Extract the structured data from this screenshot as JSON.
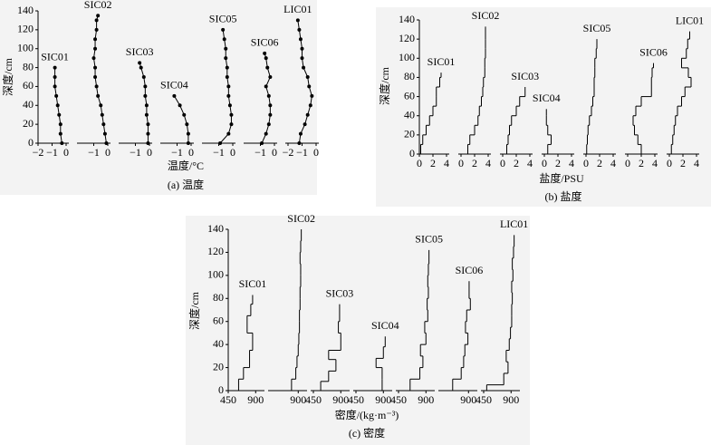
{
  "chart_data": [
    {
      "type": "line",
      "title": "(a) 温度",
      "xlabel": "温度/°C",
      "ylabel": "深度/cm",
      "ylim": [
        0,
        140
      ],
      "yticks": [
        0,
        20,
        40,
        60,
        80,
        100,
        120,
        140
      ],
      "xlim": [
        -2,
        0
      ],
      "series": [
        {
          "name": "SIC01",
          "xticks": [
            {
              "value": -2,
              "label": "−2"
            },
            {
              "value": -1,
              "label": "−1"
            },
            0
          ],
          "depth": [
            0,
            10,
            20,
            30,
            40,
            50,
            60,
            70,
            80
          ],
          "values": [
            -0.3,
            -0.4,
            -0.4,
            -0.5,
            -0.6,
            -0.7,
            -0.8,
            -0.8,
            -0.8
          ]
        },
        {
          "name": "SIC02",
          "xticks": [
            {
              "value": -1,
              "label": "−1"
            },
            0
          ],
          "depth": [
            0,
            10,
            20,
            30,
            40,
            50,
            60,
            70,
            80,
            90,
            100,
            110,
            120,
            130,
            135
          ],
          "values": [
            -0.1,
            -0.2,
            -0.3,
            -0.4,
            -0.5,
            -0.7,
            -0.8,
            -0.9,
            -0.9,
            -1.0,
            -0.9,
            -0.9,
            -0.8,
            -0.8,
            -0.7
          ]
        },
        {
          "name": "SIC03",
          "xticks": [
            {
              "value": -1,
              "label": "−1"
            },
            0
          ],
          "depth": [
            0,
            10,
            20,
            30,
            40,
            50,
            60,
            70,
            80,
            85
          ],
          "values": [
            -0.1,
            -0.1,
            -0.1,
            -0.2,
            -0.2,
            -0.3,
            -0.3,
            -0.4,
            -0.6,
            -0.7
          ]
        },
        {
          "name": "SIC04",
          "xticks": [
            {
              "value": -1,
              "label": "−1"
            },
            0
          ],
          "depth": [
            0,
            10,
            20,
            30,
            40,
            50
          ],
          "values": [
            -0.2,
            -0.2,
            -0.3,
            -0.5,
            -0.8,
            -1.2
          ]
        },
        {
          "name": "SIC05",
          "xticks": [
            {
              "value": -1,
              "label": "−1"
            },
            0
          ],
          "depth": [
            0,
            10,
            20,
            30,
            40,
            50,
            60,
            70,
            80,
            90,
            100,
            110,
            120
          ],
          "values": [
            -0.9,
            -0.3,
            -0.1,
            -0.1,
            -0.2,
            -0.3,
            -0.3,
            -0.4,
            -0.4,
            -0.5,
            -0.5,
            -0.6,
            -0.7
          ]
        },
        {
          "name": "SIC06",
          "xticks": [
            {
              "value": -1,
              "label": "−1"
            },
            0
          ],
          "depth": [
            0,
            10,
            20,
            30,
            40,
            50,
            60,
            70,
            80,
            90,
            95
          ],
          "values": [
            -0.9,
            -0.6,
            -0.4,
            -0.3,
            -0.3,
            -0.4,
            -0.6,
            -0.3,
            -0.5,
            -0.6,
            -0.7
          ]
        },
        {
          "name": "LIC01",
          "xticks": [
            {
              "value": -2,
              "label": "−2"
            },
            {
              "value": -1,
              "label": "−1"
            },
            0
          ],
          "depth": [
            0,
            10,
            20,
            30,
            40,
            50,
            60,
            70,
            80,
            90,
            100,
            110,
            120,
            130
          ],
          "values": [
            -1.2,
            -1.1,
            -0.8,
            -0.6,
            -0.4,
            -0.3,
            -0.5,
            -0.6,
            -0.9,
            -1.0,
            -1.0,
            -1.1,
            -1.2,
            -1.3
          ]
        }
      ]
    },
    {
      "type": "step",
      "title": "(b) 盐度",
      "xlabel": "盐度/PSU",
      "ylabel": "深度/cm",
      "ylim": [
        0,
        140
      ],
      "yticks": [
        0,
        20,
        40,
        60,
        80,
        100,
        120,
        140
      ],
      "xlim": [
        0,
        4
      ],
      "series": [
        {
          "name": "SIC01",
          "xticks": [
            0,
            2,
            4
          ],
          "depth": [
            0,
            10,
            20,
            30,
            40,
            50,
            60,
            70,
            80,
            85
          ],
          "values": [
            0.2,
            0.5,
            1.0,
            1.5,
            2.0,
            2.5,
            2.5,
            3.0,
            3.2
          ]
        },
        {
          "name": "SIC02",
          "xticks": [
            0,
            2,
            4
          ],
          "depth": [
            0,
            10,
            20,
            30,
            40,
            50,
            60,
            70,
            80,
            90,
            100,
            110,
            120,
            133
          ],
          "values": [
            1.0,
            1.3,
            2.0,
            2.5,
            2.7,
            3.0,
            3.2,
            3.3,
            3.5,
            3.5,
            3.6,
            3.6,
            3.6
          ]
        },
        {
          "name": "SIC03",
          "xticks": [
            0,
            2,
            4
          ],
          "depth": [
            0,
            10,
            20,
            30,
            40,
            50,
            60,
            70
          ],
          "values": [
            0.6,
            0.8,
            1.0,
            1.3,
            2.0,
            2.5,
            3.3
          ]
        },
        {
          "name": "SIC04",
          "xticks": [
            0,
            2,
            4
          ],
          "depth": [
            0,
            10,
            20,
            30,
            40,
            47
          ],
          "values": [
            0.5,
            1.0,
            0.5,
            0.3,
            0.3
          ]
        },
        {
          "name": "SIC05",
          "xticks": [
            0,
            2,
            4
          ],
          "depth": [
            0,
            10,
            20,
            30,
            40,
            50,
            60,
            70,
            80,
            90,
            100,
            110,
            120
          ],
          "values": [
            0.1,
            0.2,
            0.3,
            0.5,
            0.8,
            1.0,
            1.2,
            1.2,
            1.3,
            1.3,
            1.5,
            1.6
          ]
        },
        {
          "name": "SIC06",
          "xticks": [
            0,
            2,
            4
          ],
          "depth": [
            0,
            10,
            20,
            30,
            40,
            50,
            60,
            70,
            80,
            90,
            95
          ],
          "values": [
            2.0,
            1.5,
            1.0,
            0.8,
            1.2,
            2.0,
            3.5,
            3.5,
            3.6,
            3.8
          ]
        },
        {
          "name": "LIC01",
          "xticks": [
            0,
            2,
            4
          ],
          "depth": [
            0,
            10,
            20,
            30,
            40,
            50,
            60,
            70,
            80,
            90,
            100,
            110,
            120,
            128
          ],
          "values": [
            0.3,
            0.5,
            0.7,
            0.9,
            1.2,
            1.8,
            2.3,
            3.2,
            2.8,
            1.8,
            2.5,
            2.7,
            3.0
          ]
        }
      ]
    },
    {
      "type": "step",
      "title": "(c) 密度",
      "xlabel": "密度/(kg·m⁻³)",
      "ylabel": "深度/cm",
      "ylim": [
        0,
        140
      ],
      "yticks": [
        0,
        20,
        40,
        60,
        80,
        100,
        120,
        140
      ],
      "xlim": [
        450,
        1000
      ],
      "series": [
        {
          "name": "SIC01",
          "xticks": [
            450,
            900
          ],
          "depth": [
            0,
            10,
            20,
            35,
            50,
            65,
            75,
            83
          ],
          "values": [
            620,
            700,
            800,
            850,
            760,
            820,
            850
          ]
        },
        {
          "name": "SIC02",
          "xticks": [
            900
          ],
          "depth": [
            0,
            10,
            20,
            30,
            40,
            50,
            60,
            70,
            80,
            90,
            100,
            110,
            120,
            130,
            140
          ],
          "values": [
            790,
            860,
            880,
            900,
            910,
            920,
            920,
            930,
            930,
            940,
            940,
            930,
            940,
            950
          ]
        },
        {
          "name": "SIC03",
          "xticks": [
            450,
            900
          ],
          "depth": [
            0,
            8,
            17,
            27,
            35,
            50,
            60,
            75
          ],
          "values": [
            570,
            700,
            820,
            700,
            900,
            860,
            880
          ]
        },
        {
          "name": "SIC04",
          "xticks": [
            450,
            900
          ],
          "depth": [
            0,
            10,
            20,
            28,
            38,
            47
          ],
          "values": [
            880,
            880,
            780,
            900,
            930
          ]
        },
        {
          "name": "SIC05",
          "xticks": [
            450,
            900
          ],
          "depth": [
            0,
            10,
            20,
            30,
            40,
            50,
            60,
            70,
            80,
            90,
            100,
            110,
            122
          ],
          "values": [
            640,
            800,
            850,
            810,
            900,
            880,
            930,
            920,
            940,
            930,
            940,
            950
          ]
        },
        {
          "name": "SIC06",
          "xticks": [
            900
          ],
          "depth": [
            0,
            10,
            20,
            30,
            40,
            50,
            60,
            70,
            80,
            95
          ],
          "values": [
            640,
            780,
            820,
            840,
            890,
            850,
            870,
            930,
            910
          ]
        },
        {
          "name": "LIC01",
          "xticks": [
            450,
            900
          ],
          "depth": [
            0,
            5,
            15,
            25,
            35,
            45,
            55,
            65,
            75,
            85,
            95,
            105,
            115,
            125,
            135
          ],
          "values": [
            500,
            780,
            850,
            820,
            870,
            890,
            910,
            910,
            920,
            910,
            930,
            920,
            940,
            950
          ]
        }
      ]
    }
  ]
}
